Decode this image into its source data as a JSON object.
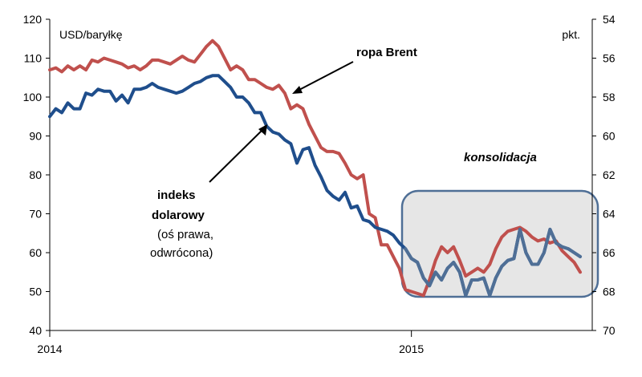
{
  "chart_data": {
    "type": "line",
    "left_axis": {
      "unit_label": "USD/baryłkę",
      "min": 40,
      "max": 120,
      "step": 10,
      "ticks": [
        "40",
        "50",
        "60",
        "70",
        "80",
        "90",
        "100",
        "110",
        "120"
      ]
    },
    "right_axis": {
      "unit_label": "pkt.",
      "min": 54,
      "max": 70,
      "step": 2,
      "inverted": true,
      "ticks": [
        "54",
        "56",
        "58",
        "60",
        "62",
        "64",
        "66",
        "68",
        "70"
      ]
    },
    "x_axis": {
      "start": "2014-01",
      "end": "2015-07",
      "ticks": [
        {
          "label": "2014",
          "t": 0
        },
        {
          "label": "2015",
          "t": 12
        }
      ]
    },
    "grid": false,
    "series": [
      {
        "name": "ropa Brent",
        "axis": "left",
        "color": "#c0504d",
        "points": [
          [
            0.0,
            107
          ],
          [
            0.2,
            107.5
          ],
          [
            0.4,
            106.5
          ],
          [
            0.6,
            108
          ],
          [
            0.8,
            107
          ],
          [
            1.0,
            108
          ],
          [
            1.2,
            107
          ],
          [
            1.4,
            109.5
          ],
          [
            1.6,
            109
          ],
          [
            1.8,
            110
          ],
          [
            2.0,
            109.5
          ],
          [
            2.2,
            109
          ],
          [
            2.4,
            108.5
          ],
          [
            2.6,
            107.5
          ],
          [
            2.8,
            108
          ],
          [
            3.0,
            107
          ],
          [
            3.2,
            108
          ],
          [
            3.4,
            109.5
          ],
          [
            3.6,
            109.5
          ],
          [
            3.8,
            109
          ],
          [
            4.0,
            108.5
          ],
          [
            4.2,
            109.5
          ],
          [
            4.4,
            110.5
          ],
          [
            4.6,
            109.5
          ],
          [
            4.8,
            109
          ],
          [
            5.0,
            111
          ],
          [
            5.2,
            113
          ],
          [
            5.4,
            114.5
          ],
          [
            5.6,
            113
          ],
          [
            5.8,
            110
          ],
          [
            6.0,
            107
          ],
          [
            6.2,
            108
          ],
          [
            6.4,
            107
          ],
          [
            6.6,
            104.5
          ],
          [
            6.8,
            104.5
          ],
          [
            7.0,
            103.5
          ],
          [
            7.2,
            102.5
          ],
          [
            7.4,
            102
          ],
          [
            7.6,
            103
          ],
          [
            7.8,
            101
          ],
          [
            8.0,
            97
          ],
          [
            8.2,
            98
          ],
          [
            8.4,
            97
          ],
          [
            8.6,
            93
          ],
          [
            8.8,
            90
          ],
          [
            9.0,
            87
          ],
          [
            9.2,
            86
          ],
          [
            9.4,
            86
          ],
          [
            9.6,
            85.5
          ],
          [
            9.8,
            83
          ],
          [
            10.0,
            80
          ],
          [
            10.2,
            79
          ],
          [
            10.4,
            80
          ],
          [
            10.6,
            70
          ],
          [
            10.8,
            69
          ],
          [
            11.0,
            62
          ],
          [
            11.2,
            62
          ],
          [
            11.4,
            59
          ],
          [
            11.6,
            56
          ],
          [
            11.8,
            50.5
          ],
          [
            12.0,
            50
          ],
          [
            12.2,
            49.5
          ],
          [
            12.4,
            49
          ],
          [
            12.6,
            53
          ],
          [
            12.8,
            58
          ],
          [
            13.0,
            61.5
          ],
          [
            13.2,
            60
          ],
          [
            13.4,
            61.5
          ],
          [
            13.6,
            58
          ],
          [
            13.8,
            54
          ],
          [
            14.0,
            55
          ],
          [
            14.2,
            56
          ],
          [
            14.4,
            55
          ],
          [
            14.6,
            57
          ],
          [
            14.8,
            61
          ],
          [
            15.0,
            64
          ],
          [
            15.2,
            65.5
          ],
          [
            15.4,
            66
          ],
          [
            15.6,
            66.5
          ],
          [
            15.8,
            65.5
          ],
          [
            16.0,
            64
          ],
          [
            16.2,
            63
          ],
          [
            16.4,
            63.5
          ],
          [
            16.6,
            62.5
          ],
          [
            16.8,
            63
          ],
          [
            17.0,
            60.5
          ],
          [
            17.2,
            59
          ],
          [
            17.4,
            57.5
          ],
          [
            17.6,
            55
          ]
        ]
      },
      {
        "name": "indeks dolarowy",
        "axis": "right",
        "color": "#1f4e8c",
        "color_in_box": "#4f6f96",
        "points": [
          [
            0.0,
            59.0
          ],
          [
            0.2,
            58.6
          ],
          [
            0.4,
            58.8
          ],
          [
            0.6,
            58.3
          ],
          [
            0.8,
            58.6
          ],
          [
            1.0,
            58.6
          ],
          [
            1.2,
            57.8
          ],
          [
            1.4,
            57.9
          ],
          [
            1.6,
            57.6
          ],
          [
            1.8,
            57.7
          ],
          [
            2.0,
            57.7
          ],
          [
            2.2,
            58.2
          ],
          [
            2.4,
            57.9
          ],
          [
            2.6,
            58.3
          ],
          [
            2.8,
            57.6
          ],
          [
            3.0,
            57.6
          ],
          [
            3.2,
            57.5
          ],
          [
            3.4,
            57.3
          ],
          [
            3.6,
            57.5
          ],
          [
            3.8,
            57.6
          ],
          [
            4.0,
            57.7
          ],
          [
            4.2,
            57.8
          ],
          [
            4.4,
            57.7
          ],
          [
            4.6,
            57.5
          ],
          [
            4.8,
            57.3
          ],
          [
            5.0,
            57.2
          ],
          [
            5.2,
            57.0
          ],
          [
            5.4,
            56.9
          ],
          [
            5.6,
            56.9
          ],
          [
            5.8,
            57.2
          ],
          [
            6.0,
            57.5
          ],
          [
            6.2,
            58.0
          ],
          [
            6.4,
            58.0
          ],
          [
            6.6,
            58.3
          ],
          [
            6.8,
            58.8
          ],
          [
            7.0,
            58.8
          ],
          [
            7.2,
            59.5
          ],
          [
            7.4,
            59.8
          ],
          [
            7.6,
            59.9
          ],
          [
            7.8,
            60.2
          ],
          [
            8.0,
            60.4
          ],
          [
            8.2,
            61.4
          ],
          [
            8.4,
            60.7
          ],
          [
            8.6,
            60.6
          ],
          [
            8.8,
            61.5
          ],
          [
            9.0,
            62.1
          ],
          [
            9.2,
            62.8
          ],
          [
            9.4,
            63.1
          ],
          [
            9.6,
            63.3
          ],
          [
            9.8,
            62.9
          ],
          [
            10.0,
            63.7
          ],
          [
            10.2,
            63.6
          ],
          [
            10.4,
            64.3
          ],
          [
            10.6,
            64.4
          ],
          [
            10.8,
            64.7
          ],
          [
            11.0,
            64.8
          ],
          [
            11.2,
            64.9
          ],
          [
            11.4,
            65.1
          ],
          [
            11.6,
            65.5
          ],
          [
            11.8,
            65.8
          ],
          [
            12.0,
            66.3
          ],
          [
            12.2,
            66.5
          ],
          [
            12.4,
            67.3
          ],
          [
            12.6,
            67.7
          ],
          [
            12.8,
            67.0
          ],
          [
            13.0,
            67.4
          ],
          [
            13.2,
            66.8
          ],
          [
            13.4,
            66.5
          ],
          [
            13.6,
            67.0
          ],
          [
            13.8,
            68.2
          ],
          [
            14.0,
            67.4
          ],
          [
            14.2,
            67.4
          ],
          [
            14.4,
            67.3
          ],
          [
            14.6,
            68.2
          ],
          [
            14.8,
            67.3
          ],
          [
            15.0,
            66.7
          ],
          [
            15.2,
            66.4
          ],
          [
            15.4,
            66.3
          ],
          [
            15.6,
            64.8
          ],
          [
            15.8,
            66.0
          ],
          [
            16.0,
            66.6
          ],
          [
            16.2,
            66.6
          ],
          [
            16.4,
            66.0
          ],
          [
            16.6,
            64.8
          ],
          [
            16.8,
            65.5
          ],
          [
            17.0,
            65.7
          ],
          [
            17.2,
            65.8
          ],
          [
            17.4,
            66.0
          ],
          [
            17.6,
            66.2
          ]
        ]
      }
    ],
    "annotations": {
      "brent_label": "ropa Brent",
      "dollar_label_line1": "indeks",
      "dollar_label_line2": "dolarowy",
      "dollar_label_line3": "(oś prawa,",
      "dollar_label_line4": "odwrócona)",
      "box_label": "konsolidacja"
    }
  }
}
